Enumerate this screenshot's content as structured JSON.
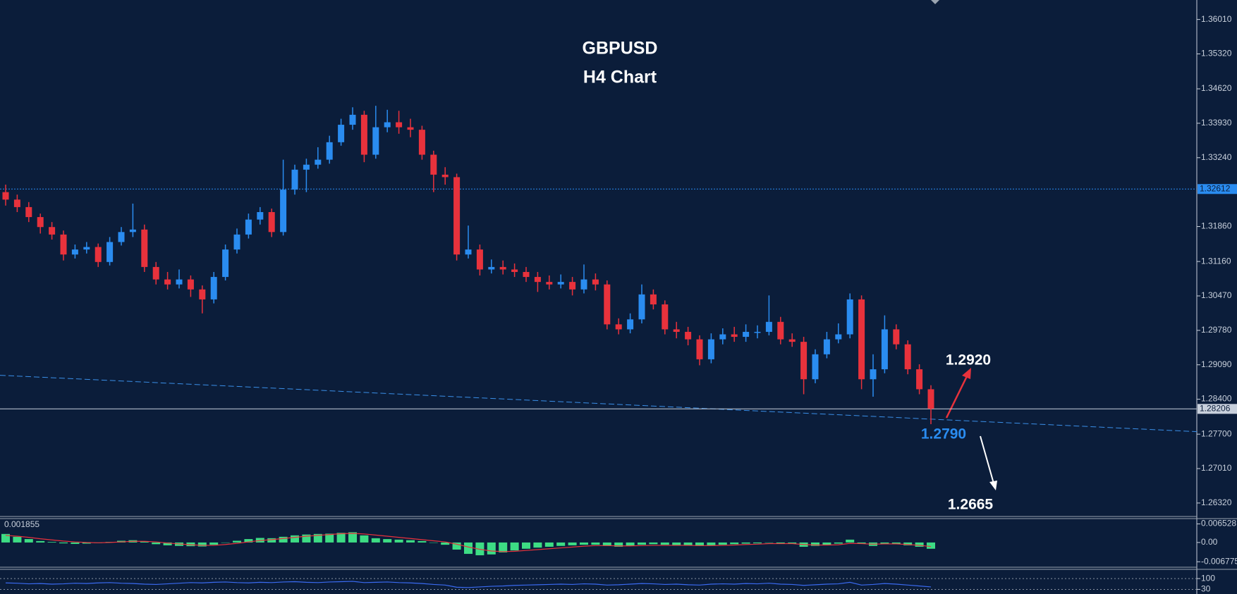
{
  "chart_data": [
    {
      "type": "candlestick",
      "title": "GBPUSD",
      "subtitle": "H4 Chart",
      "open": [
        1.3255,
        1.324,
        1.3225,
        1.3205,
        1.3185,
        1.317,
        1.313,
        1.314,
        1.3145,
        1.3115,
        1.3155,
        1.3175,
        1.318,
        1.3105,
        1.308,
        1.307,
        1.308,
        1.306,
        1.304,
        1.3085,
        1.314,
        1.317,
        1.32,
        1.3215,
        1.3175,
        1.326,
        1.33,
        1.331,
        1.332,
        1.3355,
        1.339,
        1.341,
        1.333,
        1.3385,
        1.3395,
        1.3385,
        1.338,
        1.333,
        1.329,
        1.3285,
        1.313,
        1.314,
        1.31,
        1.3105,
        1.31,
        1.3095,
        1.3085,
        1.3075,
        1.307,
        1.3075,
        1.306,
        1.308,
        1.307,
        1.299,
        1.298,
        1.3,
        1.305,
        1.303,
        1.298,
        1.2975,
        1.296,
        1.292,
        1.296,
        1.297,
        1.2965,
        1.2975,
        1.2975,
        1.2995,
        1.296,
        1.2955,
        1.288,
        1.293,
        1.296,
        1.297,
        1.304,
        1.288,
        1.29,
        1.298,
        1.295,
        1.29,
        1.286
      ],
      "high": [
        1.327,
        1.325,
        1.3235,
        1.3212,
        1.3195,
        1.3178,
        1.315,
        1.3155,
        1.3152,
        1.3165,
        1.3185,
        1.3232,
        1.319,
        1.3115,
        1.3095,
        1.31,
        1.3088,
        1.3068,
        1.3095,
        1.315,
        1.3182,
        1.3212,
        1.3225,
        1.3222,
        1.332,
        1.331,
        1.3322,
        1.3345,
        1.3368,
        1.3402,
        1.3425,
        1.3418,
        1.3428,
        1.342,
        1.3418,
        1.3402,
        1.3388,
        1.3338,
        1.3305,
        1.3292,
        1.3188,
        1.315,
        1.312,
        1.3118,
        1.3112,
        1.3105,
        1.3095,
        1.3088,
        1.309,
        1.3085,
        1.311,
        1.3092,
        1.3078,
        1.3002,
        1.3012,
        1.307,
        1.306,
        1.3038,
        1.2995,
        1.2985,
        1.2968,
        1.2972,
        1.2982,
        1.2985,
        1.299,
        1.2988,
        1.3048,
        1.3005,
        1.2972,
        1.2965,
        1.294,
        1.2975,
        1.2992,
        1.3052,
        1.3048,
        1.293,
        1.3008,
        1.299,
        1.2958,
        1.291,
        1.2868
      ],
      "low": [
        1.3228,
        1.3215,
        1.3195,
        1.3172,
        1.316,
        1.3118,
        1.3122,
        1.3132,
        1.3105,
        1.3108,
        1.3148,
        1.3165,
        1.3095,
        1.307,
        1.306,
        1.3062,
        1.3045,
        1.3012,
        1.3032,
        1.3078,
        1.3132,
        1.3162,
        1.319,
        1.3165,
        1.3168,
        1.325,
        1.3255,
        1.3302,
        1.3312,
        1.3348,
        1.338,
        1.3315,
        1.3322,
        1.3375,
        1.3372,
        1.3365,
        1.332,
        1.3255,
        1.327,
        1.3118,
        1.3122,
        1.3088,
        1.3092,
        1.309,
        1.3085,
        1.3075,
        1.3055,
        1.306,
        1.3062,
        1.3048,
        1.3052,
        1.3058,
        1.298,
        1.297,
        1.2972,
        1.2992,
        1.302,
        1.297,
        1.2962,
        1.2948,
        1.2908,
        1.2912,
        1.295,
        1.2955,
        1.2955,
        1.2962,
        1.2968,
        1.295,
        1.2945,
        1.285,
        1.2872,
        1.2922,
        1.2952,
        1.2962,
        1.286,
        1.2845,
        1.2892,
        1.294,
        1.289,
        1.285,
        1.279
      ],
      "close": [
        1.324,
        1.3225,
        1.3205,
        1.3185,
        1.317,
        1.313,
        1.314,
        1.3145,
        1.3115,
        1.3155,
        1.3175,
        1.318,
        1.3105,
        1.308,
        1.307,
        1.308,
        1.306,
        1.304,
        1.3085,
        1.314,
        1.317,
        1.32,
        1.3215,
        1.3175,
        1.326,
        1.33,
        1.331,
        1.332,
        1.3355,
        1.339,
        1.341,
        1.333,
        1.3385,
        1.3395,
        1.3385,
        1.338,
        1.333,
        1.329,
        1.3285,
        1.313,
        1.314,
        1.31,
        1.3105,
        1.31,
        1.3095,
        1.3085,
        1.3075,
        1.307,
        1.3075,
        1.306,
        1.308,
        1.307,
        1.299,
        1.298,
        1.3,
        1.305,
        1.303,
        1.298,
        1.2975,
        1.296,
        1.292,
        1.296,
        1.297,
        1.2965,
        1.2975,
        1.2975,
        1.2995,
        1.296,
        1.2955,
        1.288,
        1.293,
        1.296,
        1.297,
        1.304,
        1.288,
        1.29,
        1.298,
        1.295,
        1.29,
        1.286,
        1.2821
      ],
      "up_color": "#2a8cf0",
      "down_color": "#e8323c",
      "ylim": [
        1.2605,
        1.364
      ],
      "yticks": [
        {
          "value": 1.3601,
          "label": "1.36010"
        },
        {
          "value": 1.3532,
          "label": "1.35320"
        },
        {
          "value": 1.3462,
          "label": "1.34620"
        },
        {
          "value": 1.3393,
          "label": "1.33930"
        },
        {
          "value": 1.3324,
          "label": "1.33240"
        },
        {
          "value": 1.3186,
          "label": "1.31860"
        },
        {
          "value": 1.3116,
          "label": "1.31160"
        },
        {
          "value": 1.3047,
          "label": "1.30470"
        },
        {
          "value": 1.2978,
          "label": "1.29780"
        },
        {
          "value": 1.2909,
          "label": "1.29090"
        },
        {
          "value": 1.284,
          "label": "1.28400"
        },
        {
          "value": 1.277,
          "label": "1.27700"
        },
        {
          "value": 1.2701,
          "label": "1.27010"
        },
        {
          "value": 1.2632,
          "label": "1.26320"
        }
      ],
      "price_lines": [
        1.32612,
        1.28206
      ],
      "price_line_colors": [
        "#2a8cf0",
        "#c8d0dc"
      ],
      "trendline": {
        "values": [
          1.2888,
          1.2775
        ],
        "color": "#3a8fe8"
      },
      "annotations": [
        {
          "text": "1.2920",
          "color": "#ffffff"
        },
        {
          "text": "1.2790",
          "color": "#2a8cf0"
        },
        {
          "text": "1.2665",
          "color": "#ffffff"
        }
      ]
    },
    {
      "type": "macd",
      "label": 0.001855,
      "values": [
        0.003,
        0.002,
        0.0012,
        0.0005,
        0.0002,
        -0.0003,
        -0.0005,
        -0.0004,
        -0.0002,
        0.0002,
        0.0006,
        0.0008,
        0.0004,
        -0.0006,
        -0.001,
        -0.0012,
        -0.0013,
        -0.0014,
        -0.0008,
        0.0,
        0.0006,
        0.0012,
        0.0016,
        0.0015,
        0.002,
        0.0025,
        0.0028,
        0.003,
        0.0031,
        0.0034,
        0.0036,
        0.0025,
        0.0015,
        0.0012,
        0.001,
        0.0008,
        0.0005,
        0.0,
        -0.0008,
        -0.0025,
        -0.004,
        -0.0045,
        -0.0042,
        -0.0035,
        -0.0028,
        -0.0022,
        -0.0018,
        -0.0015,
        -0.0012,
        -0.001,
        -0.0008,
        -0.0008,
        -0.0012,
        -0.0015,
        -0.0012,
        -0.0008,
        -0.0006,
        -0.0008,
        -0.001,
        -0.001,
        -0.0012,
        -0.001,
        -0.0008,
        -0.0006,
        -0.0004,
        -0.0003,
        0.0,
        -0.0003,
        -0.0005,
        -0.0015,
        -0.0012,
        -0.0008,
        -0.0004,
        0.001,
        -0.0005,
        -0.0012,
        -0.0004,
        -0.0006,
        -0.001,
        -0.0015,
        -0.0022
      ],
      "signal": [
        0.0025,
        0.0022,
        0.0018,
        0.0013,
        0.0009,
        0.0005,
        0.0002,
        0.0,
        -0.0001,
        0.0,
        0.0002,
        0.0004,
        0.0004,
        0.0002,
        -0.0002,
        -0.0005,
        -0.0008,
        -0.001,
        -0.001,
        -0.0007,
        -0.0003,
        0.0002,
        0.0007,
        0.001,
        0.0014,
        0.0018,
        0.0022,
        0.0025,
        0.0028,
        0.0031,
        0.0032,
        0.003,
        0.0026,
        0.0022,
        0.0018,
        0.0014,
        0.001,
        0.0006,
        0.0002,
        -0.0006,
        -0.0016,
        -0.0024,
        -0.003,
        -0.0032,
        -0.0031,
        -0.0028,
        -0.0025,
        -0.0022,
        -0.0019,
        -0.0016,
        -0.0013,
        -0.0011,
        -0.0011,
        -0.0012,
        -0.0012,
        -0.0011,
        -0.001,
        -0.001,
        -0.001,
        -0.001,
        -0.0011,
        -0.0011,
        -0.001,
        -0.0009,
        -0.0007,
        -0.0006,
        -0.0004,
        -0.0004,
        -0.0004,
        -0.0007,
        -0.0009,
        -0.0009,
        -0.0008,
        -0.0003,
        -0.0004,
        -0.0006,
        -0.0005,
        -0.0005,
        -0.0007,
        -0.001,
        -0.0014
      ],
      "color": "#3ddc84",
      "signal_color": "#e8323c",
      "ylim": [
        -0.0087,
        0.0084
      ],
      "yticks": [
        0.006528,
        {
          "value": 0,
          "label": "0.00"
        },
        -0.006775
      ]
    },
    {
      "type": "line",
      "values": [
        72,
        70,
        66,
        68,
        64,
        66,
        70,
        68,
        72,
        74,
        70,
        68,
        64,
        62,
        66,
        70,
        74,
        72,
        76,
        78,
        74,
        72,
        76,
        74,
        78,
        80,
        76,
        74,
        78,
        80,
        82,
        74,
        76,
        78,
        74,
        72,
        68,
        62,
        58,
        44,
        42,
        46,
        50,
        52,
        56,
        58,
        60,
        62,
        64,
        62,
        66,
        64,
        58,
        60,
        64,
        68,
        66,
        62,
        64,
        60,
        58,
        64,
        66,
        64,
        68,
        66,
        70,
        64,
        62,
        56,
        60,
        64,
        66,
        76,
        58,
        62,
        68,
        64,
        58,
        52,
        46
      ],
      "color": "#3a6af0",
      "ylim": [
        0,
        160
      ],
      "yticks": [
        100,
        30
      ]
    }
  ]
}
